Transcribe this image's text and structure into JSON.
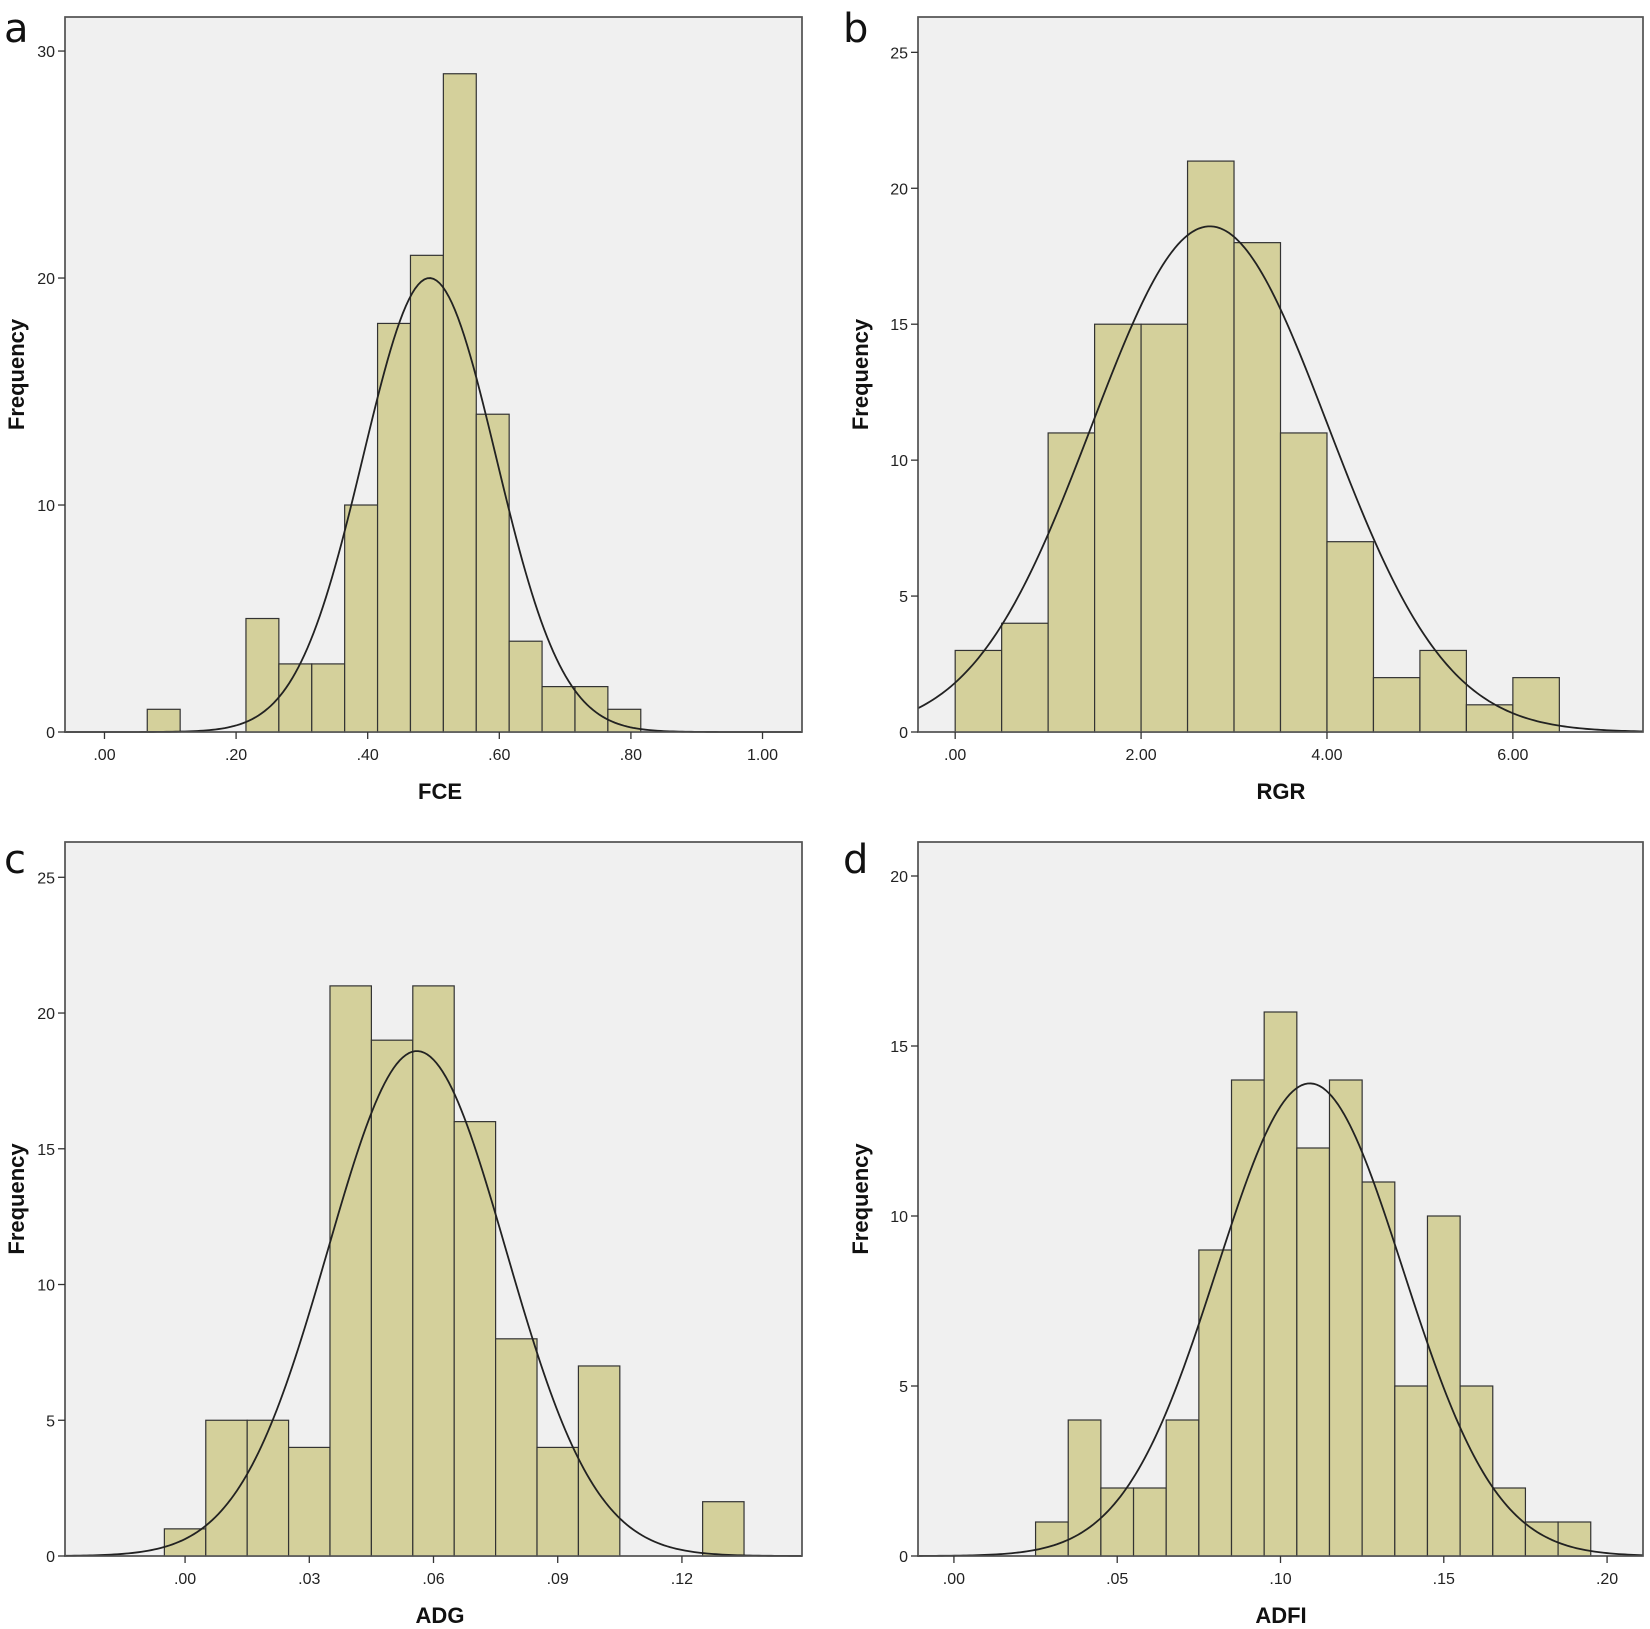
{
  "chart_data": [
    {
      "type": "bar",
      "panel": "a",
      "title": "",
      "xlabel": "FCE",
      "ylabel": "Frequency",
      "xlim": [
        -0.06,
        1.06
      ],
      "ylim": [
        0,
        31.5
      ],
      "xticks": [
        0.0,
        0.2,
        0.4,
        0.6,
        0.8,
        1.0
      ],
      "xtick_labels": [
        ".00",
        ".20",
        ".40",
        ".60",
        ".80",
        "1.00"
      ],
      "yticks": [
        0,
        10,
        20,
        30
      ],
      "ytick_labels": [
        "0",
        "10",
        "20",
        "30"
      ],
      "bin_width": 0.05,
      "bins": [
        {
          "start": 0.065,
          "value": 1
        },
        {
          "start": 0.215,
          "value": 5
        },
        {
          "start": 0.265,
          "value": 3
        },
        {
          "start": 0.315,
          "value": 3
        },
        {
          "start": 0.365,
          "value": 10
        },
        {
          "start": 0.415,
          "value": 18
        },
        {
          "start": 0.465,
          "value": 21
        },
        {
          "start": 0.515,
          "value": 29
        },
        {
          "start": 0.565,
          "value": 14
        },
        {
          "start": 0.615,
          "value": 4
        },
        {
          "start": 0.665,
          "value": 2
        },
        {
          "start": 0.715,
          "value": 2
        },
        {
          "start": 0.765,
          "value": 1
        }
      ],
      "normal_curve": {
        "mean": 0.494,
        "sd": 0.101,
        "peak": 20
      }
    },
    {
      "type": "bar",
      "panel": "b",
      "title": "",
      "xlabel": "RGR",
      "ylabel": "Frequency",
      "xlim": [
        -0.4,
        7.4
      ],
      "ylim": [
        0,
        26.3
      ],
      "xticks": [
        0,
        2,
        4,
        6
      ],
      "xtick_labels": [
        ".00",
        "2.00",
        "4.00",
        "6.00"
      ],
      "yticks": [
        0,
        5,
        10,
        15,
        20,
        25
      ],
      "ytick_labels": [
        "0",
        "5",
        "10",
        "15",
        "20",
        "25"
      ],
      "bin_width": 0.5,
      "bins": [
        {
          "start": 0.0,
          "value": 3
        },
        {
          "start": 0.5,
          "value": 4
        },
        {
          "start": 1.0,
          "value": 11
        },
        {
          "start": 1.5,
          "value": 15
        },
        {
          "start": 2.0,
          "value": 15
        },
        {
          "start": 2.5,
          "value": 21
        },
        {
          "start": 3.0,
          "value": 18
        },
        {
          "start": 3.5,
          "value": 11
        },
        {
          "start": 4.0,
          "value": 7
        },
        {
          "start": 4.5,
          "value": 2
        },
        {
          "start": 5.0,
          "value": 3
        },
        {
          "start": 5.5,
          "value": 1
        },
        {
          "start": 6.0,
          "value": 2
        }
      ],
      "normal_curve": {
        "mean": 2.74,
        "sd": 1.27,
        "peak": 18.6
      }
    },
    {
      "type": "bar",
      "panel": "c",
      "title": "",
      "xlabel": "ADG",
      "ylabel": "Frequency",
      "xlim": [
        -0.029,
        0.149
      ],
      "ylim": [
        0,
        26.3
      ],
      "xticks": [
        0.0,
        0.03,
        0.06,
        0.09,
        0.12
      ],
      "xtick_labels": [
        ".00",
        ".03",
        ".06",
        ".09",
        ".12"
      ],
      "yticks": [
        0,
        5,
        10,
        15,
        20,
        25
      ],
      "ytick_labels": [
        "0",
        "5",
        "10",
        "15",
        "20",
        "25"
      ],
      "bin_width": 0.01,
      "bins": [
        {
          "start": -0.005,
          "value": 1
        },
        {
          "start": 0.005,
          "value": 5
        },
        {
          "start": 0.015,
          "value": 5
        },
        {
          "start": 0.025,
          "value": 4
        },
        {
          "start": 0.035,
          "value": 21
        },
        {
          "start": 0.045,
          "value": 19
        },
        {
          "start": 0.055,
          "value": 21
        },
        {
          "start": 0.065,
          "value": 16
        },
        {
          "start": 0.075,
          "value": 8
        },
        {
          "start": 0.085,
          "value": 4
        },
        {
          "start": 0.095,
          "value": 7
        },
        {
          "start": 0.125,
          "value": 2
        }
      ],
      "normal_curve": {
        "mean": 0.056,
        "sd": 0.0215,
        "peak": 18.6
      }
    },
    {
      "type": "bar",
      "panel": "d",
      "title": "",
      "xlabel": "ADFI",
      "ylabel": "Frequency",
      "xlim": [
        -0.011,
        0.211
      ],
      "ylim": [
        0,
        21.0
      ],
      "xticks": [
        0.0,
        0.05,
        0.1,
        0.15,
        0.2
      ],
      "xtick_labels": [
        ".00",
        ".05",
        ".10",
        ".15",
        ".20"
      ],
      "yticks": [
        0,
        5,
        10,
        15,
        20
      ],
      "ytick_labels": [
        "0",
        "5",
        "10",
        "15",
        "20"
      ],
      "bin_width": 0.01,
      "bins": [
        {
          "start": 0.025,
          "value": 1
        },
        {
          "start": 0.035,
          "value": 4
        },
        {
          "start": 0.045,
          "value": 2
        },
        {
          "start": 0.055,
          "value": 2
        },
        {
          "start": 0.065,
          "value": 4
        },
        {
          "start": 0.075,
          "value": 9
        },
        {
          "start": 0.085,
          "value": 14
        },
        {
          "start": 0.095,
          "value": 16
        },
        {
          "start": 0.105,
          "value": 12
        },
        {
          "start": 0.115,
          "value": 14
        },
        {
          "start": 0.125,
          "value": 11
        },
        {
          "start": 0.135,
          "value": 5
        },
        {
          "start": 0.145,
          "value": 10
        },
        {
          "start": 0.155,
          "value": 5
        },
        {
          "start": 0.165,
          "value": 2
        },
        {
          "start": 0.175,
          "value": 1
        },
        {
          "start": 0.185,
          "value": 1
        }
      ],
      "normal_curve": {
        "mean": 0.109,
        "sd": 0.0285,
        "peak": 13.9
      }
    }
  ]
}
